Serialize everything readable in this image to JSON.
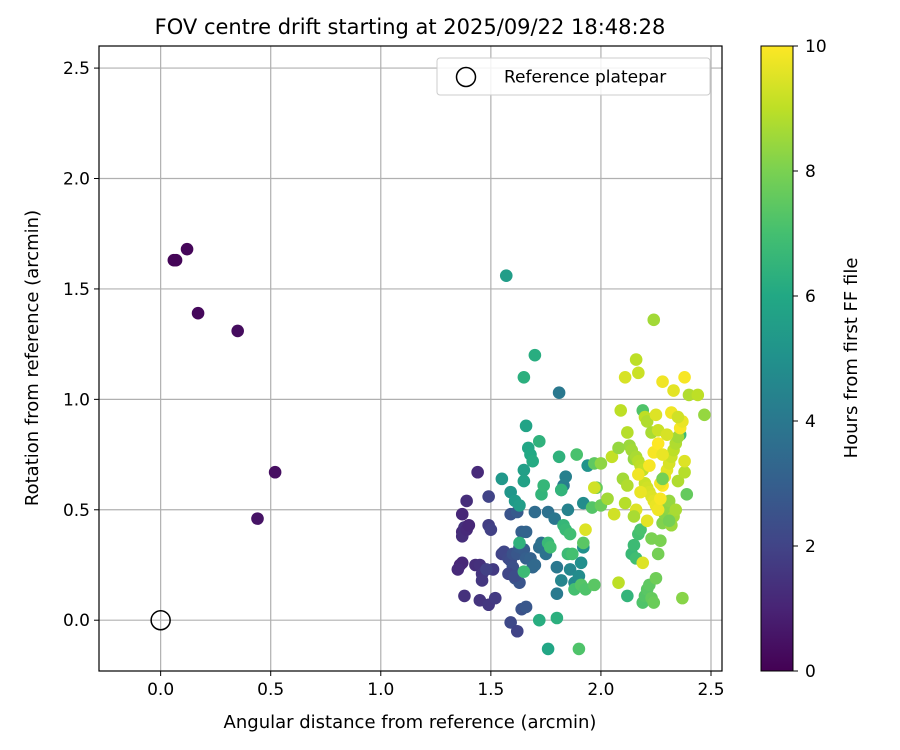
{
  "chart_data": {
    "type": "scatter",
    "title": "FOV centre drift starting at 2025/09/22 18:48:28",
    "xlabel": "Angular distance from reference (arcmin)",
    "ylabel": "Rotation from reference (arcmin)",
    "xlim": [
      -0.28,
      2.55
    ],
    "ylim": [
      -0.23,
      2.6
    ],
    "xticks": [
      0.0,
      0.5,
      1.0,
      1.5,
      2.0,
      2.5
    ],
    "xtick_labels": [
      "0.0",
      "0.5",
      "1.0",
      "1.5",
      "2.0",
      "2.5"
    ],
    "yticks": [
      0.0,
      0.5,
      1.0,
      1.5,
      2.0,
      2.5
    ],
    "ytick_labels": [
      "0.0",
      "0.5",
      "1.0",
      "1.5",
      "2.0",
      "2.5"
    ],
    "grid": true,
    "legend": {
      "position": "top-right",
      "entries": [
        {
          "label": "Reference platepar",
          "marker": "open-circle"
        }
      ]
    },
    "reference_point": {
      "x": 0.0,
      "y": 0.0
    },
    "colorbar": {
      "label": "Hours from first FF file",
      "range": [
        0,
        10
      ],
      "ticks": [
        0,
        2,
        4,
        6,
        8,
        10
      ],
      "tick_labels": [
        "0",
        "2",
        "4",
        "6",
        "8",
        "10"
      ],
      "colormap": "viridis"
    },
    "points": [
      [
        0.06,
        1.63,
        0.1
      ],
      [
        0.07,
        1.63,
        0.1
      ],
      [
        0.12,
        1.68,
        0.15
      ],
      [
        0.17,
        1.39,
        0.2
      ],
      [
        0.35,
        1.31,
        0.3
      ],
      [
        0.52,
        0.67,
        0.4
      ],
      [
        0.44,
        0.46,
        0.5
      ],
      [
        1.44,
        0.67,
        1.2
      ],
      [
        1.39,
        0.54,
        1.3
      ],
      [
        1.37,
        0.48,
        1.1
      ],
      [
        1.37,
        0.4,
        1.2
      ],
      [
        1.37,
        0.38,
        1.3
      ],
      [
        1.38,
        0.42,
        1.4
      ],
      [
        1.39,
        0.41,
        1.2
      ],
      [
        1.4,
        0.43,
        1.1
      ],
      [
        1.36,
        0.25,
        1.0
      ],
      [
        1.37,
        0.26,
        1.1
      ],
      [
        1.35,
        0.23,
        1.2
      ],
      [
        1.43,
        0.25,
        1.3
      ],
      [
        1.45,
        0.25,
        1.4
      ],
      [
        1.46,
        0.21,
        1.5
      ],
      [
        1.46,
        0.18,
        1.6
      ],
      [
        1.38,
        0.11,
        1.4
      ],
      [
        1.45,
        0.09,
        1.5
      ],
      [
        1.49,
        0.07,
        1.6
      ],
      [
        1.52,
        0.1,
        1.7
      ],
      [
        1.49,
        0.43,
        1.8
      ],
      [
        1.5,
        0.41,
        1.9
      ],
      [
        1.49,
        0.56,
        2.0
      ],
      [
        1.51,
        0.23,
        1.7
      ],
      [
        1.48,
        0.23,
        1.9
      ],
      [
        1.55,
        0.3,
        2.0
      ],
      [
        1.56,
        0.31,
        2.1
      ],
      [
        1.58,
        0.28,
        2.2
      ],
      [
        1.59,
        0.27,
        2.3
      ],
      [
        1.6,
        0.24,
        2.4
      ],
      [
        1.61,
        0.19,
        2.5
      ],
      [
        1.63,
        0.17,
        2.6
      ],
      [
        1.6,
        0.3,
        2.5
      ],
      [
        1.62,
        0.3,
        2.7
      ],
      [
        1.63,
        0.33,
        2.8
      ],
      [
        1.65,
        0.32,
        2.9
      ],
      [
        1.66,
        0.28,
        3.0
      ],
      [
        1.58,
        0.21,
        2.1
      ],
      [
        1.61,
        0.2,
        2.3
      ],
      [
        1.64,
        0.05,
        2.5
      ],
      [
        1.66,
        0.06,
        2.7
      ],
      [
        1.59,
        -0.01,
        2.2
      ],
      [
        1.62,
        -0.05,
        2.0
      ],
      [
        1.59,
        0.48,
        2.6
      ],
      [
        1.62,
        0.49,
        2.8
      ],
      [
        1.64,
        0.4,
        3.0
      ],
      [
        1.66,
        0.4,
        3.2
      ],
      [
        1.68,
        0.28,
        3.1
      ],
      [
        1.69,
        0.24,
        3.3
      ],
      [
        1.7,
        0.25,
        3.4
      ],
      [
        1.7,
        0.49,
        3.5
      ],
      [
        1.72,
        0.33,
        3.6
      ],
      [
        1.73,
        0.35,
        3.7
      ],
      [
        1.75,
        0.3,
        3.8
      ],
      [
        1.76,
        0.49,
        3.7
      ],
      [
        1.79,
        0.46,
        3.9
      ],
      [
        1.8,
        0.24,
        4.0
      ],
      [
        1.82,
        0.59,
        4.1
      ],
      [
        1.83,
        0.61,
        4.2
      ],
      [
        1.84,
        0.65,
        4.3
      ],
      [
        1.85,
        0.5,
        4.4
      ],
      [
        1.8,
        0.12,
        4.1
      ],
      [
        1.81,
        1.03,
        4.0
      ],
      [
        1.82,
        0.18,
        4.5
      ],
      [
        1.86,
        0.23,
        4.6
      ],
      [
        1.88,
        0.17,
        4.7
      ],
      [
        1.9,
        0.2,
        4.8
      ],
      [
        1.91,
        0.26,
        4.9
      ],
      [
        1.92,
        0.33,
        5.0
      ],
      [
        1.92,
        0.53,
        4.8
      ],
      [
        1.94,
        0.7,
        5.1
      ],
      [
        1.57,
        1.56,
        5.5
      ],
      [
        1.55,
        0.64,
        5.3
      ],
      [
        1.59,
        0.58,
        5.2
      ],
      [
        1.61,
        0.54,
        5.4
      ],
      [
        1.63,
        0.52,
        5.5
      ],
      [
        1.65,
        0.68,
        5.6
      ],
      [
        1.65,
        0.63,
        5.7
      ],
      [
        1.66,
        0.88,
        5.8
      ],
      [
        1.67,
        0.78,
        5.9
      ],
      [
        1.68,
        0.75,
        6.0
      ],
      [
        1.69,
        0.72,
        6.1
      ],
      [
        1.7,
        1.2,
        6.2
      ],
      [
        1.65,
        1.1,
        6.3
      ],
      [
        1.72,
        0.81,
        6.4
      ],
      [
        1.73,
        0.57,
        6.5
      ],
      [
        1.74,
        0.61,
        6.6
      ],
      [
        1.76,
        -0.13,
        5.9
      ],
      [
        1.72,
        0.0,
        6.2
      ],
      [
        1.8,
        0.01,
        6.3
      ],
      [
        1.81,
        0.74,
        6.4
      ],
      [
        1.82,
        0.59,
        6.5
      ],
      [
        1.83,
        0.43,
        6.6
      ],
      [
        1.84,
        0.41,
        6.7
      ],
      [
        1.85,
        0.3,
        6.8
      ],
      [
        1.86,
        0.39,
        6.9
      ],
      [
        1.87,
        0.3,
        7.0
      ],
      [
        1.88,
        0.14,
        7.0
      ],
      [
        1.89,
        0.75,
        7.1
      ],
      [
        1.9,
        -0.13,
        7.2
      ],
      [
        1.91,
        0.16,
        7.3
      ],
      [
        1.92,
        0.35,
        7.4
      ],
      [
        1.93,
        0.14,
        7.2
      ],
      [
        1.96,
        0.51,
        7.3
      ],
      [
        1.97,
        0.16,
        7.4
      ],
      [
        1.97,
        0.71,
        7.5
      ],
      [
        1.98,
        0.6,
        7.6
      ],
      [
        2.0,
        0.52,
        7.7
      ],
      [
        1.65,
        0.22,
        6.8
      ],
      [
        1.63,
        0.35,
        6.4
      ],
      [
        1.76,
        0.35,
        6.7
      ],
      [
        1.77,
        0.33,
        6.9
      ],
      [
        2.12,
        0.11,
        6.5
      ],
      [
        2.14,
        0.3,
        6.7
      ],
      [
        2.15,
        0.34,
        6.8
      ],
      [
        2.16,
        0.28,
        6.9
      ],
      [
        2.17,
        0.39,
        7.0
      ],
      [
        2.18,
        0.41,
        7.1
      ],
      [
        2.19,
        0.08,
        7.2
      ],
      [
        2.2,
        0.11,
        7.3
      ],
      [
        2.21,
        0.14,
        7.4
      ],
      [
        2.22,
        0.16,
        7.5
      ],
      [
        2.23,
        0.1,
        7.6
      ],
      [
        2.24,
        0.08,
        7.7
      ],
      [
        2.25,
        0.19,
        7.8
      ],
      [
        2.26,
        0.3,
        7.9
      ],
      [
        2.27,
        0.36,
        8.0
      ],
      [
        2.28,
        0.44,
        8.1
      ],
      [
        2.29,
        0.48,
        8.2
      ],
      [
        2.3,
        0.51,
        8.3
      ],
      [
        2.31,
        0.54,
        8.4
      ],
      [
        2.32,
        0.43,
        8.5
      ],
      [
        2.33,
        0.47,
        8.6
      ],
      [
        2.34,
        0.5,
        8.7
      ],
      [
        2.35,
        0.63,
        8.8
      ],
      [
        2.36,
        0.84,
        6.8
      ],
      [
        2.37,
        0.1,
        8.2
      ],
      [
        2.38,
        0.67,
        8.9
      ],
      [
        2.39,
        0.57,
        7.6
      ],
      [
        2.24,
        1.36,
        8.6
      ],
      [
        2.16,
        1.18,
        9.0
      ],
      [
        2.17,
        1.12,
        9.2
      ],
      [
        2.11,
        1.1,
        9.4
      ],
      [
        2.19,
        0.95,
        7.2
      ],
      [
        2.2,
        0.92,
        9.0
      ],
      [
        2.21,
        0.9,
        8.8
      ],
      [
        2.23,
        0.85,
        8.7
      ],
      [
        2.12,
        0.85,
        8.9
      ],
      [
        2.13,
        0.79,
        8.5
      ],
      [
        2.14,
        0.77,
        8.6
      ],
      [
        2.15,
        0.73,
        8.4
      ],
      [
        2.16,
        0.74,
        8.7
      ],
      [
        2.17,
        0.72,
        8.9
      ],
      [
        2.18,
        0.7,
        9.0
      ],
      [
        2.19,
        0.68,
        9.1
      ],
      [
        2.2,
        0.62,
        9.2
      ],
      [
        2.21,
        0.6,
        9.3
      ],
      [
        2.22,
        0.58,
        9.4
      ],
      [
        2.23,
        0.56,
        9.5
      ],
      [
        2.24,
        0.54,
        9.6
      ],
      [
        2.25,
        0.52,
        9.7
      ],
      [
        2.26,
        0.5,
        9.8
      ],
      [
        2.27,
        0.55,
        9.9
      ],
      [
        2.28,
        0.61,
        10.0
      ],
      [
        2.29,
        0.65,
        9.8
      ],
      [
        2.3,
        0.68,
        9.6
      ],
      [
        2.31,
        0.71,
        9.4
      ],
      [
        2.32,
        0.74,
        9.2
      ],
      [
        2.33,
        0.77,
        9.0
      ],
      [
        2.34,
        0.8,
        8.8
      ],
      [
        2.35,
        0.83,
        8.6
      ],
      [
        2.36,
        0.87,
        9.9
      ],
      [
        2.37,
        0.9,
        9.7
      ],
      [
        2.38,
        0.72,
        9.5
      ],
      [
        2.4,
        1.02,
        8.8
      ],
      [
        2.44,
        1.02,
        9.0
      ],
      [
        2.47,
        0.93,
        8.4
      ],
      [
        2.38,
        1.1,
        9.9
      ],
      [
        2.33,
        1.04,
        9.6
      ],
      [
        2.28,
        1.08,
        9.8
      ],
      [
        2.09,
        0.95,
        9.0
      ],
      [
        2.05,
        0.74,
        9.1
      ],
      [
        2.08,
        0.78,
        8.4
      ],
      [
        2.1,
        0.64,
        8.6
      ],
      [
        2.12,
        0.61,
        8.8
      ],
      [
        2.11,
        0.53,
        8.9
      ],
      [
        2.06,
        0.48,
        9.3
      ],
      [
        2.03,
        0.55,
        8.6
      ],
      [
        2.0,
        0.71,
        8.3
      ],
      [
        1.97,
        0.6,
        9.3
      ],
      [
        1.93,
        0.41,
        9.5
      ],
      [
        2.08,
        0.17,
        9.0
      ],
      [
        2.19,
        0.26,
        9.5
      ],
      [
        2.21,
        0.45,
        9.6
      ],
      [
        2.17,
        0.66,
        9.8
      ],
      [
        2.22,
        0.7,
        9.9
      ],
      [
        2.24,
        0.76,
        9.9
      ],
      [
        2.26,
        0.8,
        10.0
      ],
      [
        2.27,
        0.62,
        9.8
      ],
      [
        2.18,
        0.58,
        9.7
      ],
      [
        2.16,
        0.5,
        9.5
      ],
      [
        2.28,
        0.75,
        9.7
      ],
      [
        2.32,
        0.94,
        9.8
      ],
      [
        2.35,
        0.92,
        9.3
      ],
      [
        2.25,
        0.93,
        9.5
      ],
      [
        2.26,
        0.86,
        9.2
      ],
      [
        2.3,
        0.84,
        9.4
      ],
      [
        2.15,
        0.47,
        8.7
      ],
      [
        2.31,
        0.45,
        7.9
      ],
      [
        2.23,
        0.37,
        8.0
      ],
      [
        2.28,
        0.64,
        7.9
      ]
    ]
  }
}
